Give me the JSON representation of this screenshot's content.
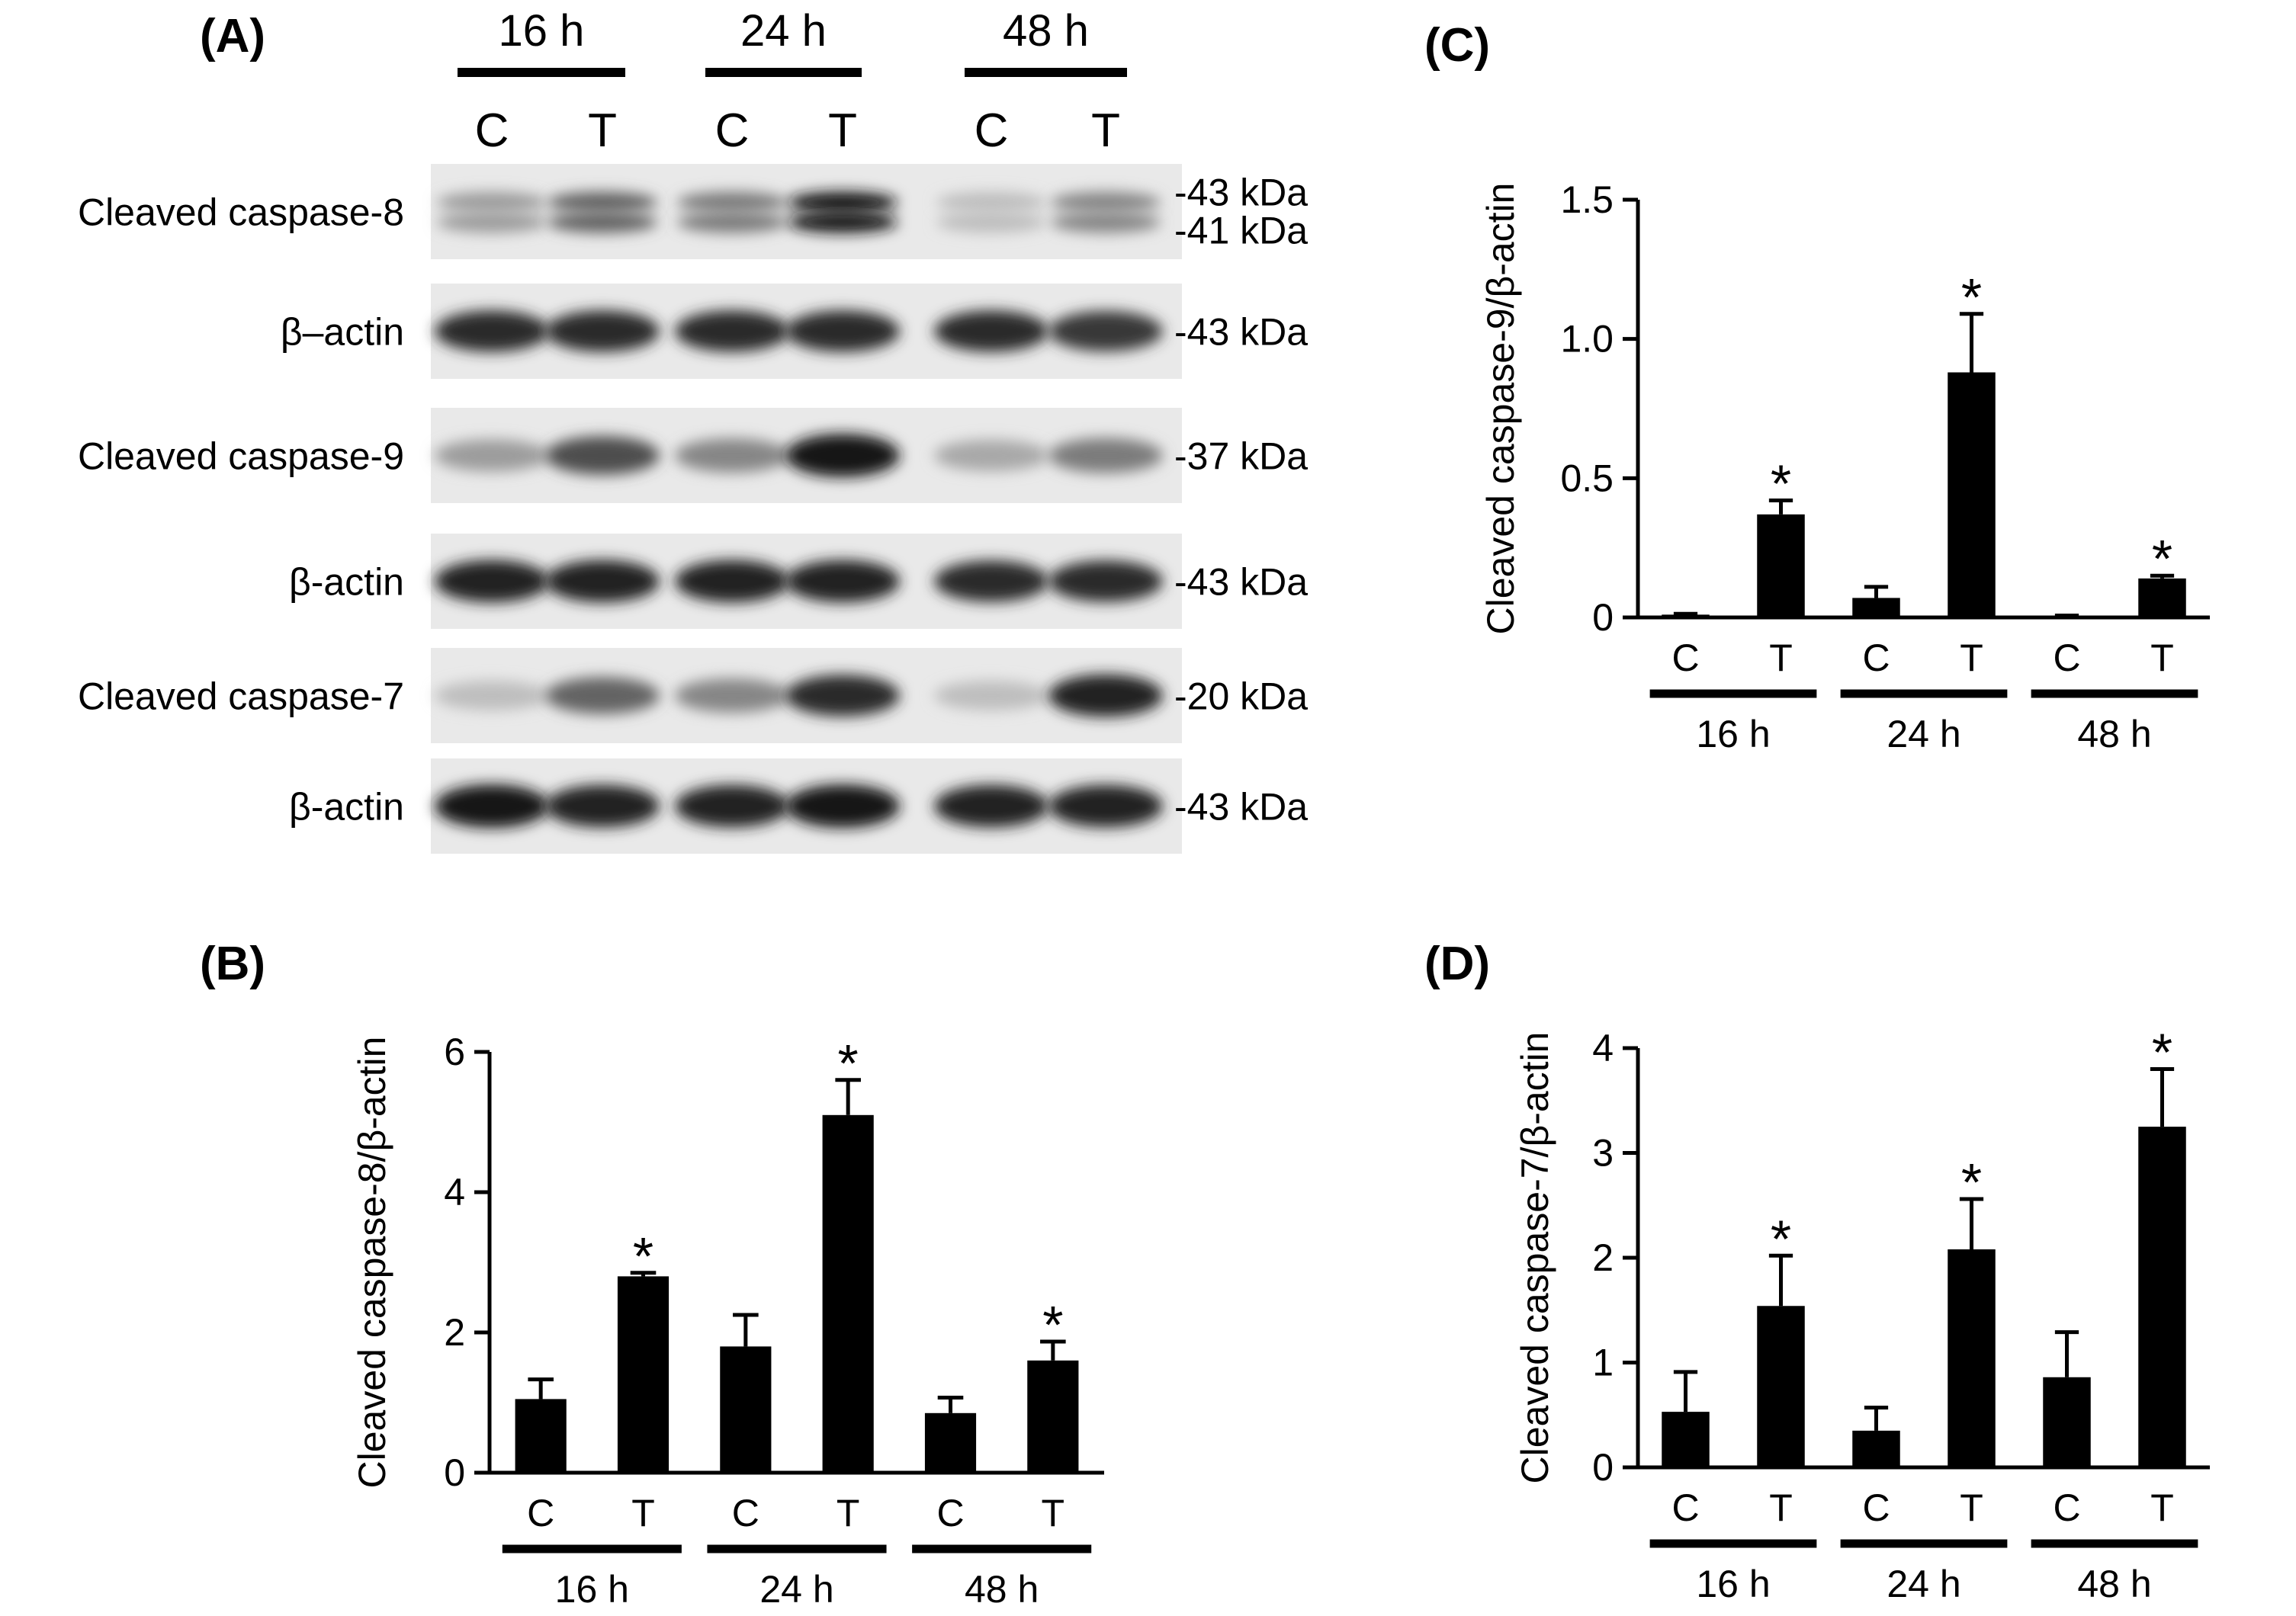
{
  "panel_labels": {
    "a": "(A)",
    "b": "(B)",
    "c": "(C)",
    "d": "(D)"
  },
  "blot": {
    "timepoints": [
      "16 h",
      "24 h",
      "48 h"
    ],
    "lanes": [
      "C",
      "T",
      "C",
      "T",
      "C",
      "T"
    ],
    "rows": [
      {
        "label": "Cleaved caspase-8",
        "markers": [
          "-43 kDa",
          "-41 kDa"
        ],
        "intensity": [
          0.35,
          0.6,
          0.5,
          0.95,
          0.2,
          0.45
        ],
        "double": true
      },
      {
        "label": "β–actin",
        "markers": [
          "-43 kDa"
        ],
        "intensity": [
          0.85,
          0.85,
          0.85,
          0.85,
          0.85,
          0.8
        ],
        "double": false
      },
      {
        "label": "Cleaved caspase-9",
        "markers": [
          "-37 kDa"
        ],
        "intensity": [
          0.35,
          0.7,
          0.45,
          0.95,
          0.3,
          0.5
        ],
        "double": false
      },
      {
        "label": "β-actin",
        "markers": [
          "-43 kDa"
        ],
        "intensity": [
          0.9,
          0.9,
          0.9,
          0.9,
          0.85,
          0.85
        ],
        "double": false
      },
      {
        "label": "Cleaved caspase-7",
        "markers": [
          "-20 kDa"
        ],
        "intensity": [
          0.2,
          0.6,
          0.45,
          0.85,
          0.2,
          0.9
        ],
        "double": false
      },
      {
        "label": "β-actin",
        "markers": [
          "-43 kDa"
        ],
        "intensity": [
          0.95,
          0.9,
          0.9,
          0.95,
          0.9,
          0.9
        ],
        "double": false
      }
    ]
  },
  "chart_data": [
    {
      "panel": "B",
      "type": "bar",
      "categories": [
        "C",
        "T",
        "C",
        "T",
        "C",
        "T"
      ],
      "groups": [
        "16 h",
        "24 h",
        "48 h"
      ],
      "values": [
        1.05,
        2.8,
        1.8,
        5.1,
        0.85,
        1.6
      ],
      "errors": [
        0.28,
        0.05,
        0.45,
        0.5,
        0.22,
        0.27
      ],
      "significant": [
        false,
        true,
        false,
        true,
        false,
        true
      ],
      "sig_marker": "*",
      "title": "",
      "xlabel": "",
      "ylabel": "Cleaved caspase-8/β-actin",
      "ylim": [
        0,
        6
      ],
      "yticks": [
        0,
        2,
        4,
        6
      ],
      "ytick_labels": [
        "0",
        "2",
        "4",
        "6"
      ]
    },
    {
      "panel": "C",
      "type": "bar",
      "categories": [
        "C",
        "T",
        "C",
        "T",
        "C",
        "T"
      ],
      "groups": [
        "16 h",
        "24 h",
        "48 h"
      ],
      "values": [
        0.01,
        0.37,
        0.07,
        0.88,
        0.005,
        0.14
      ],
      "errors": [
        0.003,
        0.05,
        0.04,
        0.21,
        0.002,
        0.01
      ],
      "significant": [
        false,
        true,
        false,
        true,
        false,
        true
      ],
      "sig_marker": "*",
      "title": "",
      "xlabel": "",
      "ylabel": "Cleaved caspase-9/β-actin",
      "ylim": [
        0,
        1.5
      ],
      "yticks": [
        0,
        0.5,
        1.0,
        1.5
      ],
      "ytick_labels": [
        "0",
        "0.5",
        "1.0",
        "1.5"
      ]
    },
    {
      "panel": "D",
      "type": "bar",
      "categories": [
        "C",
        "T",
        "C",
        "T",
        "C",
        "T"
      ],
      "groups": [
        "16 h",
        "24 h",
        "48 h"
      ],
      "values": [
        0.53,
        1.54,
        0.35,
        2.08,
        0.86,
        3.25
      ],
      "errors": [
        0.38,
        0.48,
        0.22,
        0.48,
        0.43,
        0.55
      ],
      "significant": [
        false,
        true,
        false,
        true,
        false,
        true
      ],
      "sig_marker": "*",
      "title": "",
      "xlabel": "",
      "ylabel": "Cleaved caspase-7/β-actin",
      "ylim": [
        0,
        4
      ],
      "yticks": [
        0,
        1,
        2,
        3,
        4
      ],
      "ytick_labels": [
        "0",
        "1",
        "2",
        "3",
        "4"
      ]
    }
  ]
}
